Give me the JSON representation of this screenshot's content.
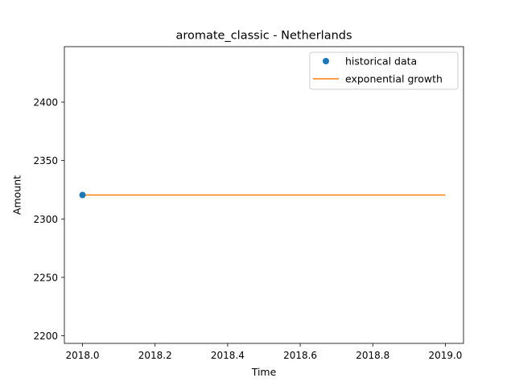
{
  "chart_data": {
    "type": "line",
    "title": "aromate_classic - Netherlands",
    "xlabel": "Time",
    "ylabel": "Amount",
    "xlim": [
      2017.95,
      2019.05
    ],
    "ylim": [
      2193.5,
      2447.5
    ],
    "xticks": [
      2018.0,
      2018.2,
      2018.4,
      2018.6,
      2018.8,
      2019.0
    ],
    "xtick_labels": [
      "2018.0",
      "2018.2",
      "2018.4",
      "2018.6",
      "2018.8",
      "2019.0"
    ],
    "yticks": [
      2200,
      2250,
      2300,
      2350,
      2400
    ],
    "ytick_labels": [
      "2200",
      "2250",
      "2300",
      "2350",
      "2400"
    ],
    "grid": false,
    "legend_position": "top-right",
    "series": [
      {
        "name": "historical data",
        "style": "scatter",
        "color": "#1f77b4",
        "points": [
          {
            "x": 2018.0,
            "y": 2320.5
          }
        ]
      },
      {
        "name": "exponential growth",
        "style": "line",
        "color": "#ff7f0e",
        "points": [
          {
            "x": 2018.0,
            "y": 2320.5
          },
          {
            "x": 2019.0,
            "y": 2320.5
          }
        ]
      }
    ]
  }
}
